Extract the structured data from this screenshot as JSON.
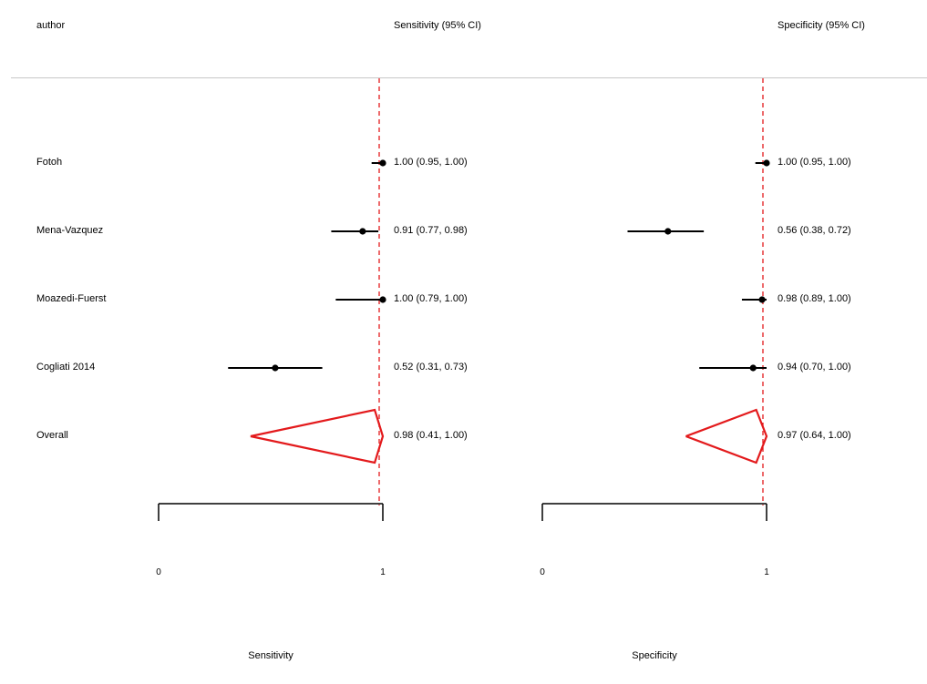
{
  "header": {
    "author": "author",
    "sensitivity": "Sensitivity (95% CI)",
    "specificity": "Specificity (95% CI)"
  },
  "chart_data": {
    "type": "forest",
    "reference_line": {
      "value": 1,
      "color": "#e31a1c",
      "style": "dashed"
    },
    "summary_color": "#e31a1c",
    "rows": [
      {
        "author": "Fotoh",
        "sens": {
          "est": 1.0,
          "lo": 0.95,
          "hi": 1.0,
          "text": "1.00 (0.95, 1.00)"
        },
        "spec": {
          "est": 1.0,
          "lo": 0.95,
          "hi": 1.0,
          "text": "1.00 (0.95, 1.00)"
        }
      },
      {
        "author": "Mena-Vazquez",
        "sens": {
          "est": 0.91,
          "lo": 0.77,
          "hi": 0.98,
          "text": "0.91 (0.77, 0.98)"
        },
        "spec": {
          "est": 0.56,
          "lo": 0.38,
          "hi": 0.72,
          "text": "0.56 (0.38, 0.72)"
        }
      },
      {
        "author": "Moazedi-Fuerst",
        "sens": {
          "est": 1.0,
          "lo": 0.79,
          "hi": 1.0,
          "text": "1.00 (0.79, 1.00)"
        },
        "spec": {
          "est": 0.98,
          "lo": 0.89,
          "hi": 1.0,
          "text": "0.98 (0.89, 1.00)"
        }
      },
      {
        "author": "Cogliati 2014",
        "sens": {
          "est": 0.52,
          "lo": 0.31,
          "hi": 0.73,
          "text": "0.52 (0.31, 0.73)"
        },
        "spec": {
          "est": 0.94,
          "lo": 0.7,
          "hi": 1.0,
          "text": "0.94 (0.70, 1.00)"
        }
      }
    ],
    "overall": {
      "author": "Overall",
      "sens": {
        "est": 0.98,
        "lo": 0.41,
        "hi": 1.0,
        "text": "0.98 (0.41, 1.00)"
      },
      "spec": {
        "est": 0.97,
        "lo": 0.64,
        "hi": 1.0,
        "text": "0.97 (0.64, 1.00)"
      }
    },
    "panels": [
      {
        "key": "sens",
        "xlabel": "Sensitivity",
        "xlim": [
          0,
          1
        ],
        "ticks": [
          "0",
          "1"
        ]
      },
      {
        "key": "spec",
        "xlabel": "Specificity",
        "xlim": [
          0,
          1
        ],
        "ticks": [
          "0",
          "1"
        ]
      }
    ]
  }
}
